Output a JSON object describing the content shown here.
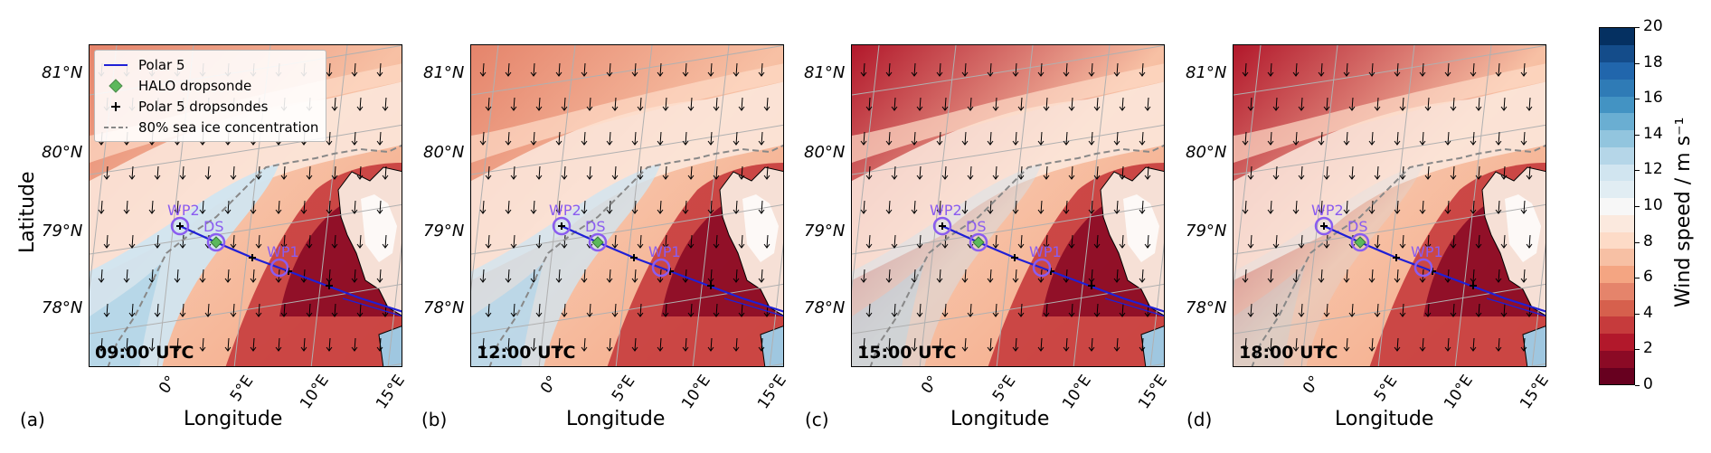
{
  "panels": [
    {
      "letter": "(a)",
      "time": "09:00 UTC"
    },
    {
      "letter": "(b)",
      "time": "12:00 UTC"
    },
    {
      "letter": "(c)",
      "time": "15:00 UTC"
    },
    {
      "letter": "(d)",
      "time": "18:00 UTC"
    }
  ],
  "axes": {
    "xlabel": "Longitude",
    "ylabel": "Latitude",
    "lat_ticks": [
      "81°N",
      "80°N",
      "79°N",
      "78°N"
    ],
    "lon_ticks": [
      "0°",
      "5°E",
      "10°E",
      "15°E"
    ]
  },
  "legend": {
    "items": [
      {
        "label": "Polar 5",
        "symbol": "blue-line"
      },
      {
        "label": "HALO dropsonde",
        "symbol": "green-diamond"
      },
      {
        "label": "Polar 5 dropsondes",
        "symbol": "black-plus"
      },
      {
        "label": "80% sea ice concentration",
        "symbol": "grey-dashed-line"
      }
    ]
  },
  "waypoints": {
    "wp2": "WP2",
    "ds": "DS",
    "wp1": "WP1"
  },
  "colorbar": {
    "label": "Wind speed / m s⁻¹",
    "ticks": [
      "20",
      "18",
      "16",
      "14",
      "12",
      "10",
      "8",
      "6",
      "4",
      "2",
      "0"
    ],
    "range": [
      0,
      20
    ],
    "colors": [
      "#67001f",
      "#8b0a25",
      "#b2182b",
      "#c63b3c",
      "#d6604d",
      "#e5846b",
      "#f4a582",
      "#f7c0a4",
      "#fddbc7",
      "#fbe9de",
      "#f7f7f7",
      "#e1edf3",
      "#d1e5f0",
      "#b5d6e8",
      "#92c5de",
      "#6aaed2",
      "#4393c3",
      "#2f7bb6",
      "#2166ac",
      "#144c8a",
      "#053061"
    ]
  },
  "colors": {
    "track": "#1f1fd6",
    "waypoint": "#8a5cf0",
    "halo": "#5cb85c",
    "ice_edge": "#888888"
  }
}
